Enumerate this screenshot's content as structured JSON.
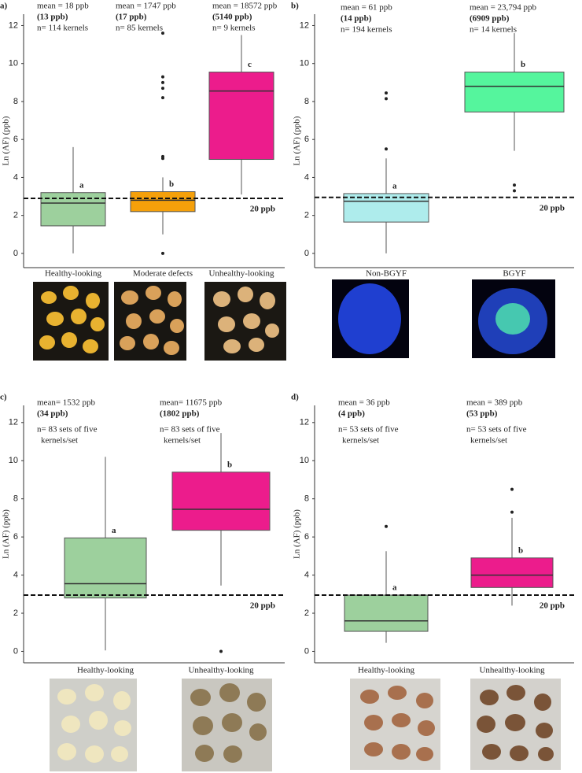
{
  "chart_data": [
    {
      "type": "box",
      "panel_label": "a)",
      "y_label": "Ln (AF) (ppb)",
      "ylim": [
        -0.75,
        12.6
      ],
      "yticks": [
        0,
        2,
        4,
        6,
        8,
        10,
        12
      ],
      "reference_line": {
        "value": 2.9,
        "label": "20 ppb"
      },
      "categories": [
        "Healthy-looking",
        "Moderate defects",
        "Unhealthy-looking"
      ],
      "boxes": [
        {
          "min": 0,
          "q1": 1.45,
          "median": 2.65,
          "q3": 3.2,
          "max": 5.6,
          "outliers": [],
          "color": "#9dd09d",
          "group_label": "a",
          "notes": [
            "mean = 18 ppb",
            "(13 ppb)",
            "n= 114 kernels"
          ]
        },
        {
          "min": 1.0,
          "q1": 2.2,
          "median": 2.8,
          "q3": 3.25,
          "max": 4.0,
          "outliers": [
            0,
            5.0,
            5.1,
            8.2,
            8.7,
            9.0,
            9.3,
            11.6
          ],
          "color": "#f5a00a",
          "group_label": "b",
          "notes": [
            "mean = 1747 ppb",
            "(17 ppb)",
            "n= 85 kernels"
          ]
        },
        {
          "min": 3.1,
          "q1": 4.95,
          "median": 8.55,
          "q3": 9.55,
          "max": 11.5,
          "outliers": [],
          "color": "#ec1c8c",
          "group_label": "c",
          "notes": [
            "mean = 18572 ppb",
            "(5140 ppb)",
            "n= 9 kernels"
          ]
        }
      ]
    },
    {
      "type": "box",
      "panel_label": "b)",
      "y_label": "Ln (AF) (ppb)",
      "ylim": [
        -0.75,
        12.6
      ],
      "yticks": [
        0,
        2,
        4,
        6,
        8,
        10,
        12
      ],
      "reference_line": {
        "value": 2.95,
        "label": "20 ppb"
      },
      "categories": [
        "Non-BGYF",
        "BGYF"
      ],
      "boxes": [
        {
          "min": 0,
          "q1": 1.65,
          "median": 2.75,
          "q3": 3.15,
          "max": 5.0,
          "outliers": [
            5.5,
            8.15,
            8.45
          ],
          "color": "#aeecec",
          "group_label": "a",
          "notes": [
            "mean = 61 ppb",
            "(14 ppb)",
            "n= 194 kernels"
          ]
        },
        {
          "min": 5.4,
          "q1": 7.45,
          "median": 8.8,
          "q3": 9.55,
          "max": 11.6,
          "outliers": [
            3.3,
            3.6
          ],
          "color": "#55f59d",
          "group_label": "b",
          "notes": [
            "mean = 23,794 ppb",
            "(6909 ppb)",
            "n= 14 kernels"
          ]
        }
      ]
    },
    {
      "type": "box",
      "panel_label": "c)",
      "y_label": "Ln (AF) (ppb)",
      "ylim": [
        -0.6,
        12.9
      ],
      "yticks": [
        0,
        2,
        4,
        6,
        8,
        10,
        12
      ],
      "reference_line": {
        "value": 2.95,
        "label": "20 ppb"
      },
      "categories": [
        "Healthy-looking",
        "Unhealthy-looking"
      ],
      "boxes": [
        {
          "min": 0.05,
          "q1": 2.8,
          "median": 3.55,
          "q3": 5.95,
          "max": 10.2,
          "outliers": [],
          "color": "#9dd09d",
          "group_label": "a",
          "notes": [
            "mean= 1532 ppb",
            "(34 ppb)",
            "n= 83 sets of five",
            "kernels/set"
          ]
        },
        {
          "min": 3.45,
          "q1": 6.35,
          "median": 7.45,
          "q3": 9.4,
          "max": 11.45,
          "outliers": [
            0
          ],
          "color": "#ec1c8c",
          "group_label": "b",
          "notes": [
            "mean= 11675 ppb",
            "(1802 ppb)",
            "n= 83 sets of five",
            "kernels/set"
          ]
        }
      ]
    },
    {
      "type": "box",
      "panel_label": "d)",
      "y_label": "Ln (AF) (ppb)",
      "ylim": [
        -0.6,
        12.9
      ],
      "yticks": [
        0,
        2,
        4,
        6,
        8,
        10,
        12
      ],
      "reference_line": {
        "value": 2.95,
        "label": "20 ppb"
      },
      "categories": [
        "Healthy-looking",
        "Unhealthy-looking"
      ],
      "boxes": [
        {
          "min": 0.45,
          "q1": 1.05,
          "median": 1.6,
          "q3": 2.95,
          "max": 5.25,
          "outliers": [
            6.55
          ],
          "color": "#9dd09d",
          "group_label": "a",
          "notes": [
            "mean = 36 ppb",
            "(4 ppb)",
            "n= 53 sets of five",
            "kernels/set"
          ]
        },
        {
          "min": 2.4,
          "q1": 3.35,
          "median": 4.0,
          "q3": 4.9,
          "max": 7.0,
          "outliers": [
            7.3,
            8.5
          ],
          "color": "#ec1c8c",
          "group_label": "b",
          "notes": [
            "mean = 389 ppb",
            "(53 ppb)",
            "n= 53 sets of five",
            "kernels/set"
          ]
        }
      ]
    }
  ]
}
